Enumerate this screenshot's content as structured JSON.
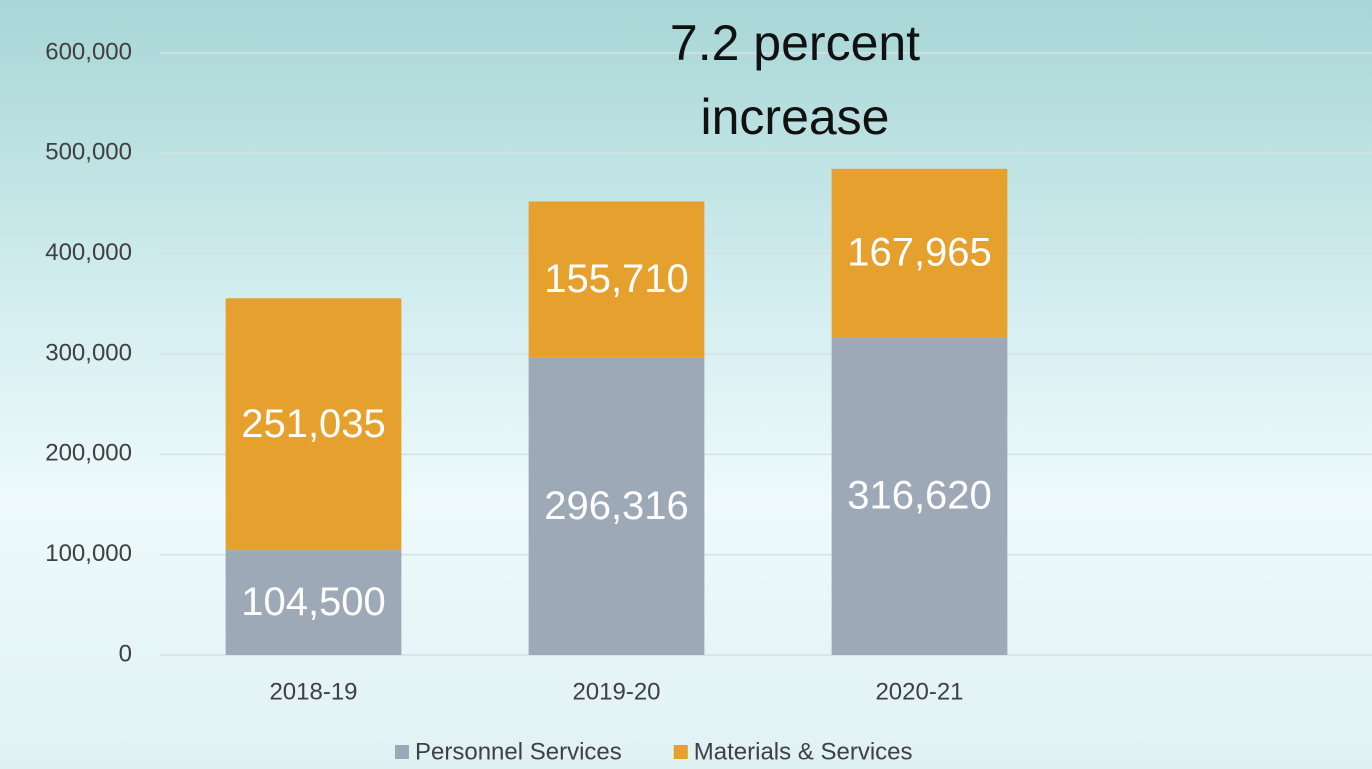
{
  "chart_data": {
    "type": "stacked_bar",
    "title": "7.2 percent increase",
    "categories": [
      "2018-19",
      "2019-20",
      "2020-21"
    ],
    "series": [
      {
        "name": "Personnel Services",
        "color": "#9ea9b8",
        "values": [
          104500,
          296316,
          316620
        ],
        "value_labels": [
          "104,500",
          "296,316",
          "316,620"
        ]
      },
      {
        "name": "Materials & Services",
        "color": "#e6a02e",
        "values": [
          251035,
          155710,
          167965
        ],
        "value_labels": [
          "251,035",
          "155,710",
          "167,965"
        ]
      }
    ],
    "ylim": [
      0,
      600000
    ],
    "yticks": [
      0,
      {
        "value": 100000,
        "label": "100,000"
      },
      {
        "value": 200000,
        "label": "200,000"
      },
      {
        "value": 300000,
        "label": "300,000"
      },
      {
        "value": 400000,
        "label": "400,000"
      },
      {
        "value": 500000,
        "label": "500,000"
      },
      {
        "value": 600000,
        "label": "600,000"
      }
    ],
    "grid": true,
    "legend": "bottom"
  }
}
